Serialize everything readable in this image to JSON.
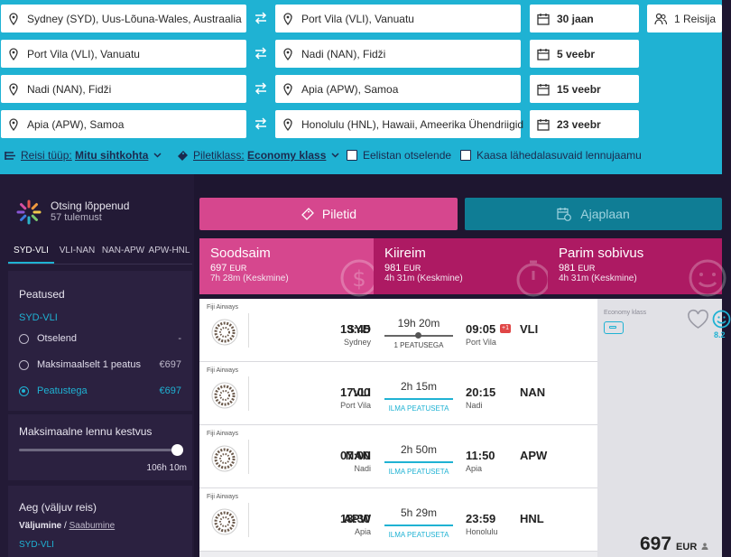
{
  "search": {
    "legs": [
      {
        "from": "Sydney (SYD), Uus-Lõuna-Wales, Austraalia",
        "to": "Port Vila (VLI), Vanuatu",
        "date": "30 jaan"
      },
      {
        "from": "Port Vila (VLI), Vanuatu",
        "to": "Nadi (NAN), Fidži",
        "date": "5 veebr"
      },
      {
        "from": "Nadi (NAN), Fidži",
        "to": "Apia (APW), Samoa",
        "date": "15 veebr"
      },
      {
        "from": "Apia (APW), Samoa",
        "to": "Honolulu (HNL), Hawaii, Ameerika Ühendriigid",
        "date": "23 veebr"
      }
    ],
    "passengers": "1 Reisija",
    "trip_type_label": "Reisi tüüp:",
    "trip_type_value": "Mitu sihtkohta",
    "class_label": "Piletiklass:",
    "class_value": "Economy klass",
    "direct_label": "Eelistan otselende",
    "nearby_label": "Kaasa lähedalasuvaid lennujaamu"
  },
  "sidebar": {
    "status_title": "Otsing lõppenud",
    "status_count": "57 tulemust",
    "leg_tabs": [
      "SYD-VLI",
      "VLI-NAN",
      "NAN-APW",
      "APW-HNL"
    ],
    "stops": {
      "title": "Peatused",
      "leg": "SYD-VLI",
      "options": [
        {
          "label": "Otselend",
          "price": "-"
        },
        {
          "label": "Maksimaalselt 1 peatus",
          "price": "€697"
        },
        {
          "label": "Peatustega",
          "price": "€697"
        }
      ]
    },
    "duration": {
      "title": "Maksimaalne lennu kestvus",
      "value": "106h 10m",
      "level": 1.0
    },
    "time": {
      "title": "Aeg (väljuv reis)",
      "depart": "Väljumine",
      "sep": " / ",
      "arrive": "Saabumine",
      "leg": "SYD-VLI"
    }
  },
  "main": {
    "tab_tickets": "Piletid",
    "tab_schedule": "Ajaplaan",
    "sorts": [
      {
        "name": "Soodsaim",
        "price": "697",
        "cur": "EUR",
        "duration": "7h 28m (Keskmine)"
      },
      {
        "name": "Kiireim",
        "price": "981",
        "cur": "EUR",
        "duration": "4h 31m (Keskmine)"
      },
      {
        "name": "Parim sobivus",
        "price": "981",
        "cur": "EUR",
        "duration": "4h 31m (Keskmine)"
      }
    ],
    "flights": [
      {
        "airline": "Fiji Airways",
        "dep_code": "SYD",
        "dep_time": "13:45",
        "dep_city": "Sydney",
        "duration": "19h 20m",
        "stops": "1 PEATUSEGA",
        "arr_time": "09:05",
        "plus": "+1",
        "arr_code": "VLI",
        "arr_city": "Port Vila"
      },
      {
        "airline": "Fiji Airways",
        "dep_code": "VLI",
        "dep_time": "17:00",
        "dep_city": "Port Vila",
        "duration": "2h 15m",
        "stops": "ILMA PEATUSETA",
        "arr_time": "20:15",
        "arr_code": "NAN",
        "arr_city": "Nadi"
      },
      {
        "airline": "Fiji Airways",
        "dep_code": "NAN",
        "dep_time": "07:00",
        "dep_city": "Nadi",
        "duration": "2h 50m",
        "stops": "ILMA PEATUSETA",
        "arr_time": "11:50",
        "arr_code": "APW",
        "arr_city": "Apia"
      },
      {
        "airline": "Fiji Airways",
        "dep_code": "APW",
        "dep_time": "18:30",
        "dep_city": "Apia",
        "duration": "5h 29m",
        "stops": "ILMA PEATUSETA",
        "arr_time": "23:59",
        "arr_code": "HNL",
        "arr_city": "Honolulu"
      }
    ],
    "offer": {
      "class": "Economy klass",
      "score": "8.2",
      "price": "697",
      "currency": "EUR"
    }
  }
}
